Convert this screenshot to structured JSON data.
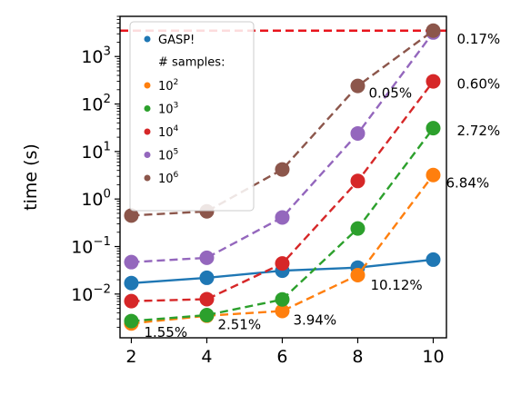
{
  "chart_data": {
    "type": "line",
    "x": [
      2,
      4,
      6,
      8,
      10
    ],
    "xlabel": "",
    "ylabel": "time (s)",
    "yscale": "log",
    "xlim": [
      1.7,
      10.35
    ],
    "ylim": [
      0.0012,
      7000
    ],
    "xticks": [
      2,
      4,
      6,
      8,
      10
    ],
    "yticks": [
      {
        "value": 0.01,
        "base": "10",
        "exp": "−2"
      },
      {
        "value": 0.1,
        "base": "10",
        "exp": "−1"
      },
      {
        "value": 1,
        "base": "10",
        "exp": "0"
      },
      {
        "value": 10,
        "base": "10",
        "exp": "1"
      },
      {
        "value": 100,
        "base": "10",
        "exp": "2"
      },
      {
        "value": 1000,
        "base": "10",
        "exp": "3"
      }
    ],
    "reference_line": {
      "value": 3500,
      "color": "#e8141c",
      "style": "dashed"
    },
    "legend_header": "# samples:",
    "legend_placement": "top-left",
    "series": [
      {
        "name": "GASP!",
        "label_base": "",
        "label_exp": "",
        "color": "#1f77b4",
        "style": "solid",
        "values": [
          0.017,
          0.022,
          0.031,
          0.036,
          0.053
        ]
      },
      {
        "name": "",
        "label_base": "10",
        "label_exp": "2",
        "color": "#ff7f0e",
        "style": "dashed",
        "values": [
          0.0024,
          0.0035,
          0.0044,
          0.025,
          3.2
        ]
      },
      {
        "name": "",
        "label_base": "10",
        "label_exp": "3",
        "color": "#2ca02c",
        "style": "dashed",
        "values": [
          0.0027,
          0.0036,
          0.0077,
          0.24,
          31
        ]
      },
      {
        "name": "",
        "label_base": "10",
        "label_exp": "4",
        "color": "#d62728",
        "style": "dashed",
        "values": [
          0.0071,
          0.0078,
          0.044,
          2.4,
          300
        ]
      },
      {
        "name": "",
        "label_base": "10",
        "label_exp": "5",
        "color": "#9467bd",
        "style": "dashed",
        "values": [
          0.047,
          0.058,
          0.41,
          24,
          3200
        ]
      },
      {
        "name": "",
        "label_base": "10",
        "label_exp": "6",
        "color": "#8c564b",
        "style": "dashed",
        "values": [
          0.45,
          0.55,
          4.2,
          240,
          3500
        ]
      }
    ],
    "annotations": [
      {
        "text": "1.55%",
        "x": 2,
        "y": 0.0024,
        "dx": 14,
        "dy": 15
      },
      {
        "text": "2.51%",
        "x": 4,
        "y": 0.0035,
        "dx": 12,
        "dy": 15
      },
      {
        "text": "3.94%",
        "x": 6,
        "y": 0.0044,
        "dx": 12,
        "dy": 15
      },
      {
        "text": "10.12%",
        "x": 8,
        "y": 0.025,
        "dx": 14,
        "dy": 16
      },
      {
        "text": "6.84%",
        "x": 10,
        "y": 3.2,
        "dx": 14,
        "dy": 14
      },
      {
        "text": "2.72%",
        "x": 10,
        "y": 31,
        "dx": 26,
        "dy": 8
      },
      {
        "text": "0.60%",
        "x": 10,
        "y": 300,
        "dx": 26,
        "dy": 8
      },
      {
        "text": "0.17%",
        "x": 10,
        "y": 3200,
        "dx": 26,
        "dy": 12
      },
      {
        "text": "0.05%",
        "x": 8,
        "y": 240,
        "dx": 12,
        "dy": 13
      }
    ]
  }
}
